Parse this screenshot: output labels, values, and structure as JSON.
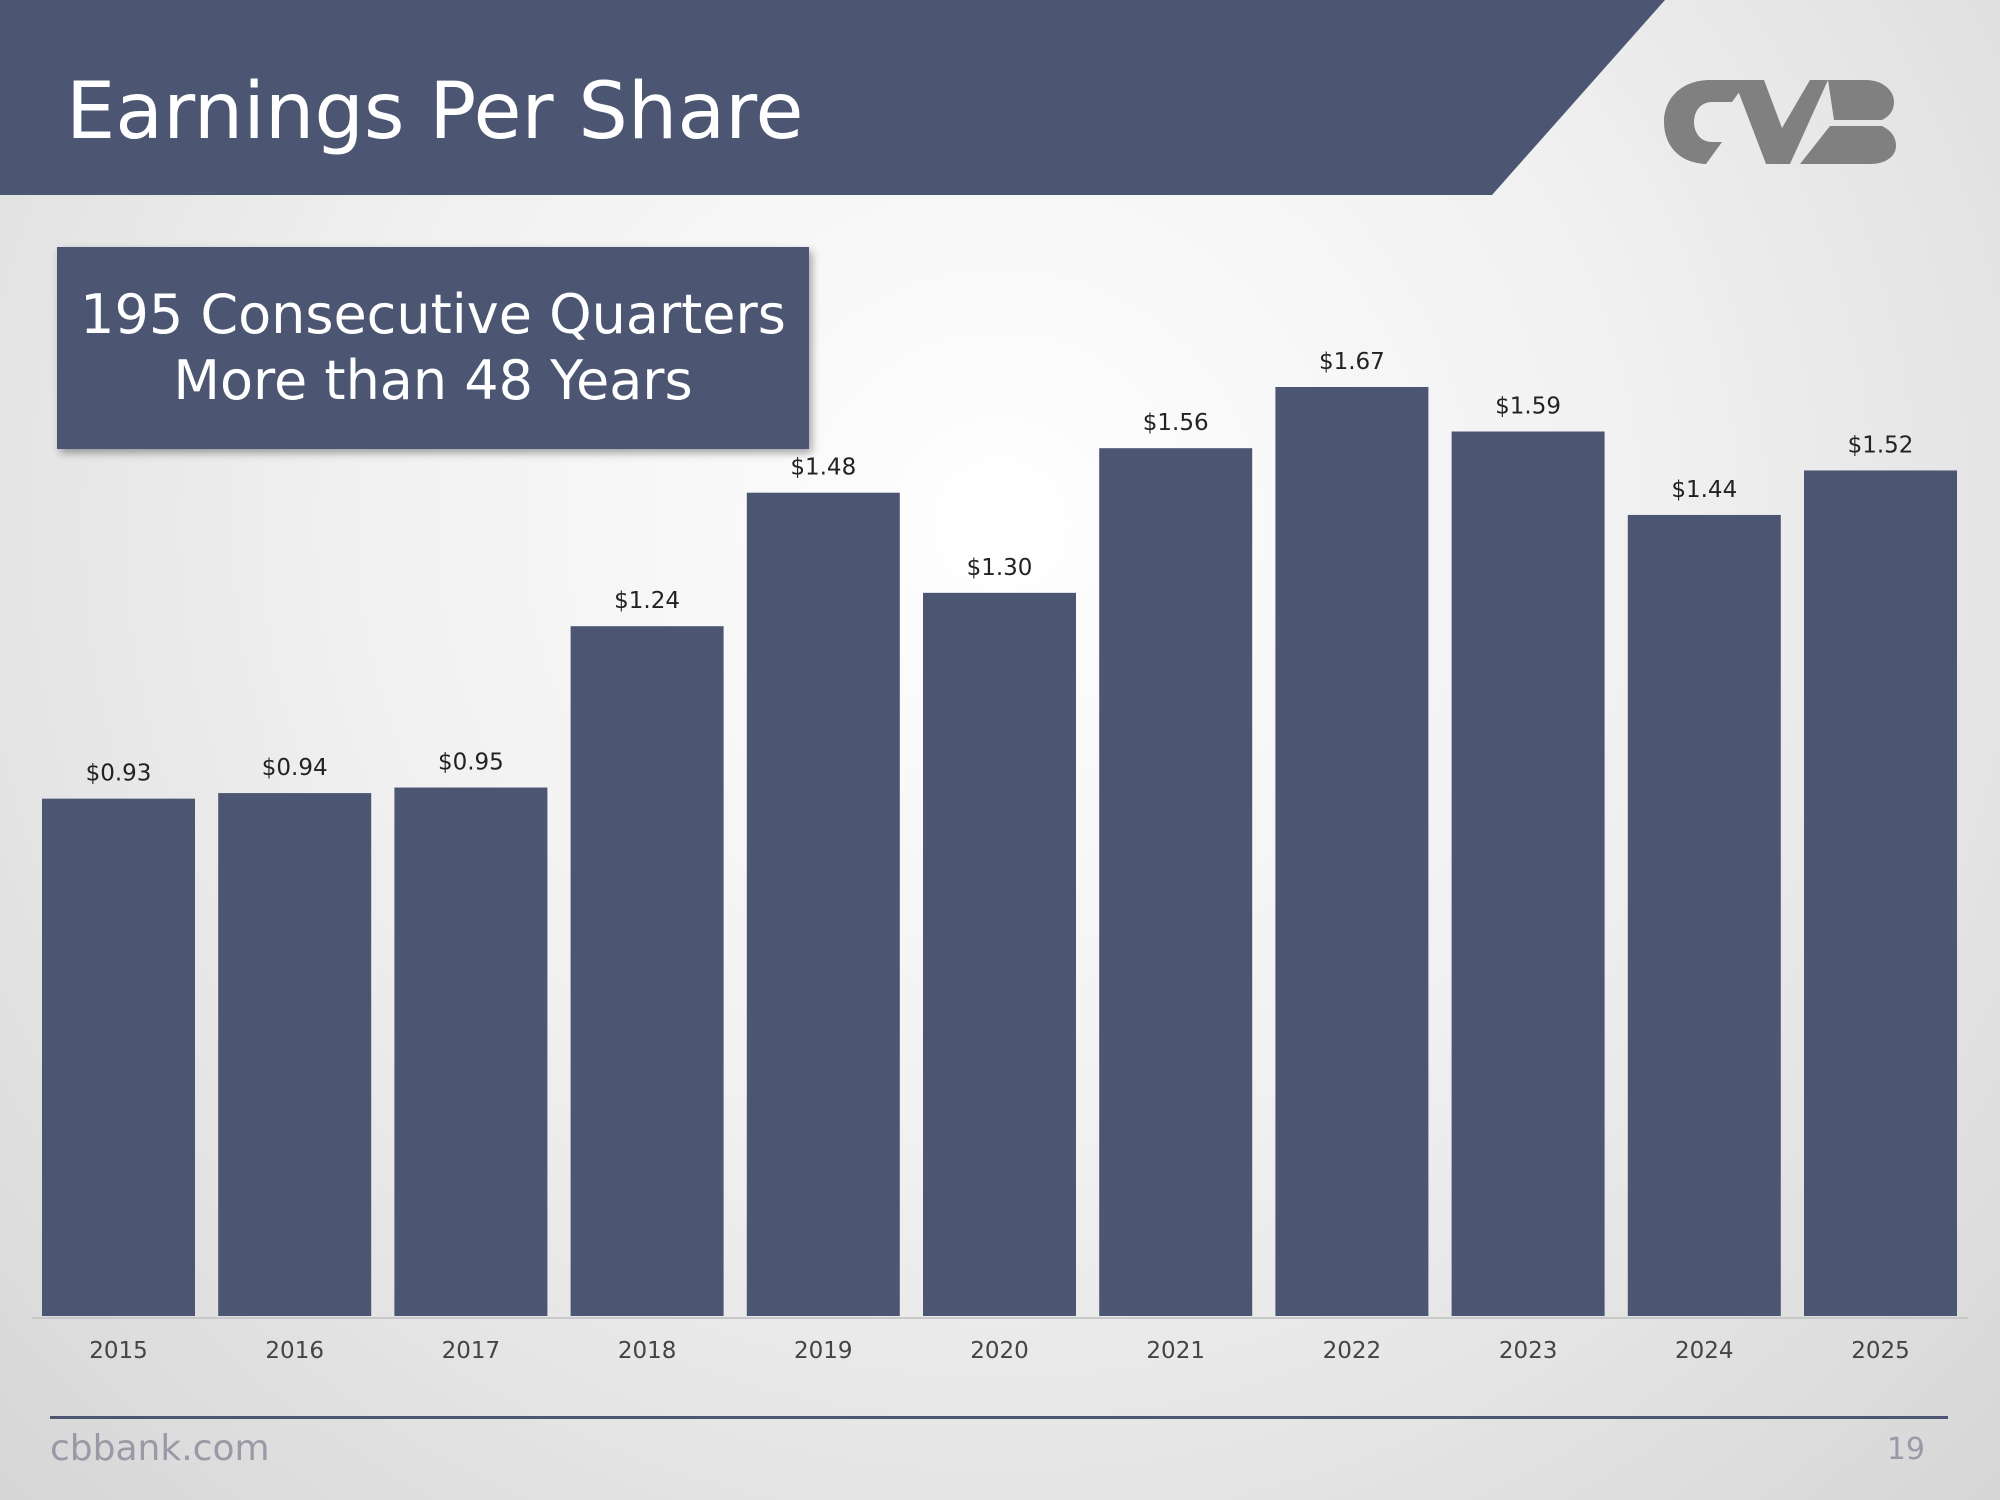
{
  "header": {
    "title": "Earnings Per Share"
  },
  "callout": {
    "line1": "195 Consecutive Quarters",
    "line2": "More than 48 Years"
  },
  "footer": {
    "site": "cbbank.com",
    "page_number": "19"
  },
  "colors": {
    "bar": "#4c5672",
    "logo": "#808080",
    "label": "#222222"
  },
  "chart_data": {
    "type": "bar",
    "title": "",
    "xlabel": "",
    "ylabel": "",
    "categories": [
      "2015",
      "2016",
      "2017",
      "2018",
      "2019",
      "2020",
      "2021",
      "2022",
      "2023",
      "2024",
      "2025"
    ],
    "values": [
      0.93,
      0.94,
      0.95,
      1.24,
      1.48,
      1.3,
      1.56,
      1.67,
      1.59,
      1.44,
      1.52
    ],
    "value_labels": [
      "$0.93",
      "$0.94",
      "$0.95",
      "$1.24",
      "$1.48",
      "$1.30",
      "$1.56",
      "$1.67",
      "$1.59",
      "$1.44",
      "$1.52"
    ],
    "ylim": [
      0,
      1.67
    ],
    "grid": false,
    "legend": "none"
  }
}
